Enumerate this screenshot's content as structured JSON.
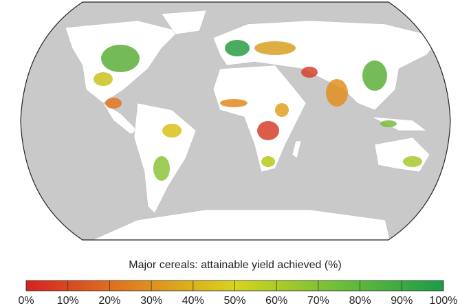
{
  "chart_data": {
    "type": "colorbar-map",
    "title": "Major cereals: attainable yield achieved (%)",
    "colormap": [
      "#d42222",
      "#e0801f",
      "#d8d41c",
      "#6cbf3a",
      "#1d9a48"
    ],
    "clim": [
      0,
      100
    ],
    "ticks": [
      {
        "value": 0,
        "label": "0%"
      },
      {
        "value": 10,
        "label": "10%"
      },
      {
        "value": 20,
        "label": "20%"
      },
      {
        "value": 30,
        "label": "30%"
      },
      {
        "value": 40,
        "label": "40%"
      },
      {
        "value": 50,
        "label": "50%"
      },
      {
        "value": 60,
        "label": "60%"
      },
      {
        "value": 70,
        "label": "70%"
      },
      {
        "value": 80,
        "label": "80%"
      },
      {
        "value": 90,
        "label": "90%"
      },
      {
        "value": 100,
        "label": "100%"
      }
    ]
  }
}
